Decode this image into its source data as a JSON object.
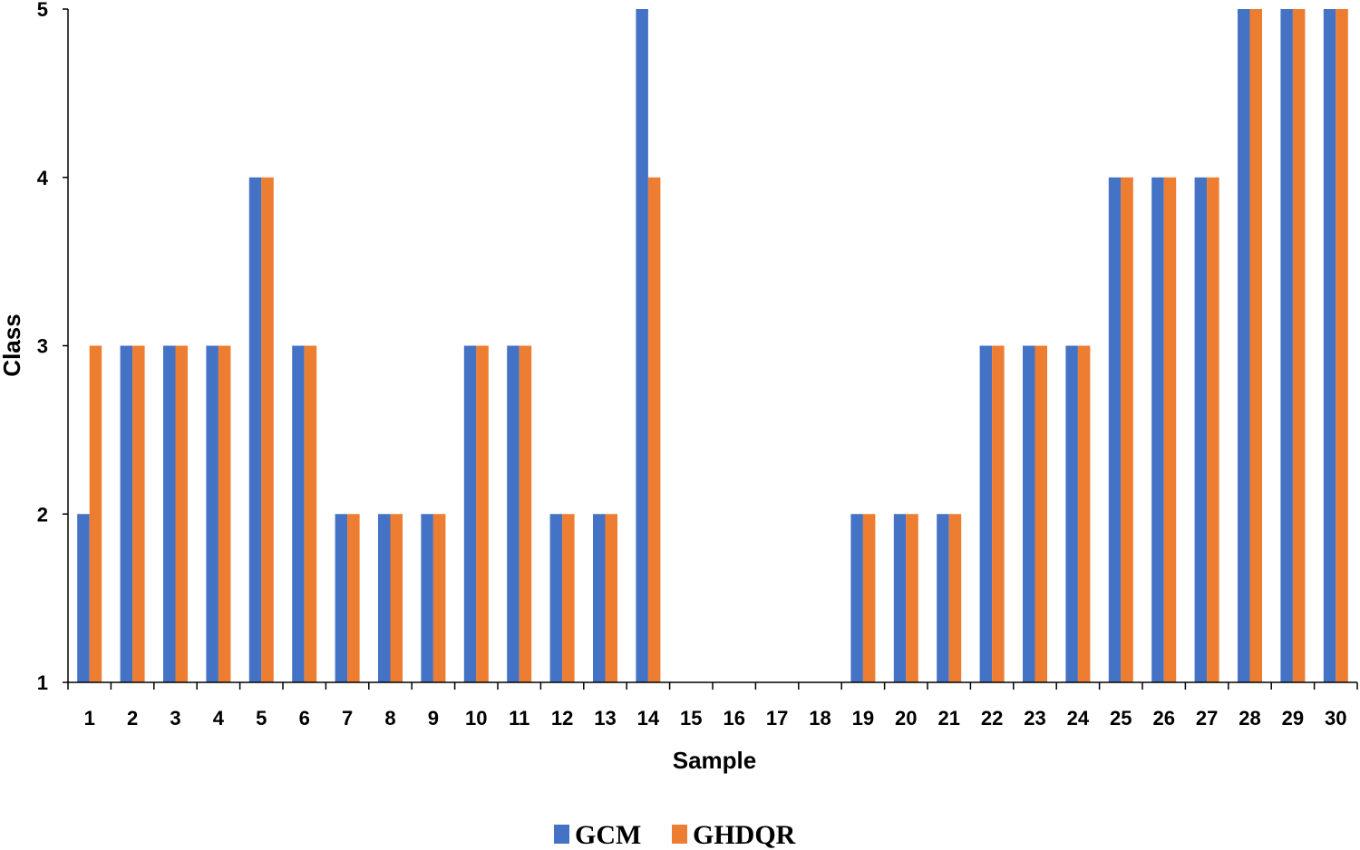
{
  "chart_data": {
    "type": "bar",
    "title": "",
    "xlabel": "Sample",
    "ylabel": "Class",
    "ylim": [
      1,
      5
    ],
    "yticks": [
      "1",
      "2",
      "3",
      "4",
      "5"
    ],
    "grid": false,
    "legend_position": "bottom",
    "categories": [
      "1",
      "2",
      "3",
      "4",
      "5",
      "6",
      "7",
      "8",
      "9",
      "10",
      "11",
      "12",
      "13",
      "14",
      "15",
      "16",
      "17",
      "18",
      "19",
      "20",
      "21",
      "22",
      "23",
      "24",
      "25",
      "26",
      "27",
      "28",
      "29",
      "30"
    ],
    "series": [
      {
        "name": "GCM",
        "color": "#4472C4",
        "values": [
          2,
          3,
          3,
          3,
          4,
          3,
          2,
          2,
          2,
          3,
          3,
          2,
          2,
          5,
          1,
          1,
          1,
          1,
          2,
          2,
          2,
          3,
          3,
          3,
          4,
          4,
          4,
          5,
          5,
          5
        ]
      },
      {
        "name": "GHDQR",
        "color": "#ED7D31",
        "values": [
          3,
          3,
          3,
          3,
          4,
          3,
          2,
          2,
          2,
          3,
          3,
          2,
          2,
          4,
          1,
          1,
          1,
          1,
          2,
          2,
          2,
          3,
          3,
          3,
          4,
          4,
          4,
          5,
          5,
          5
        ]
      }
    ]
  }
}
